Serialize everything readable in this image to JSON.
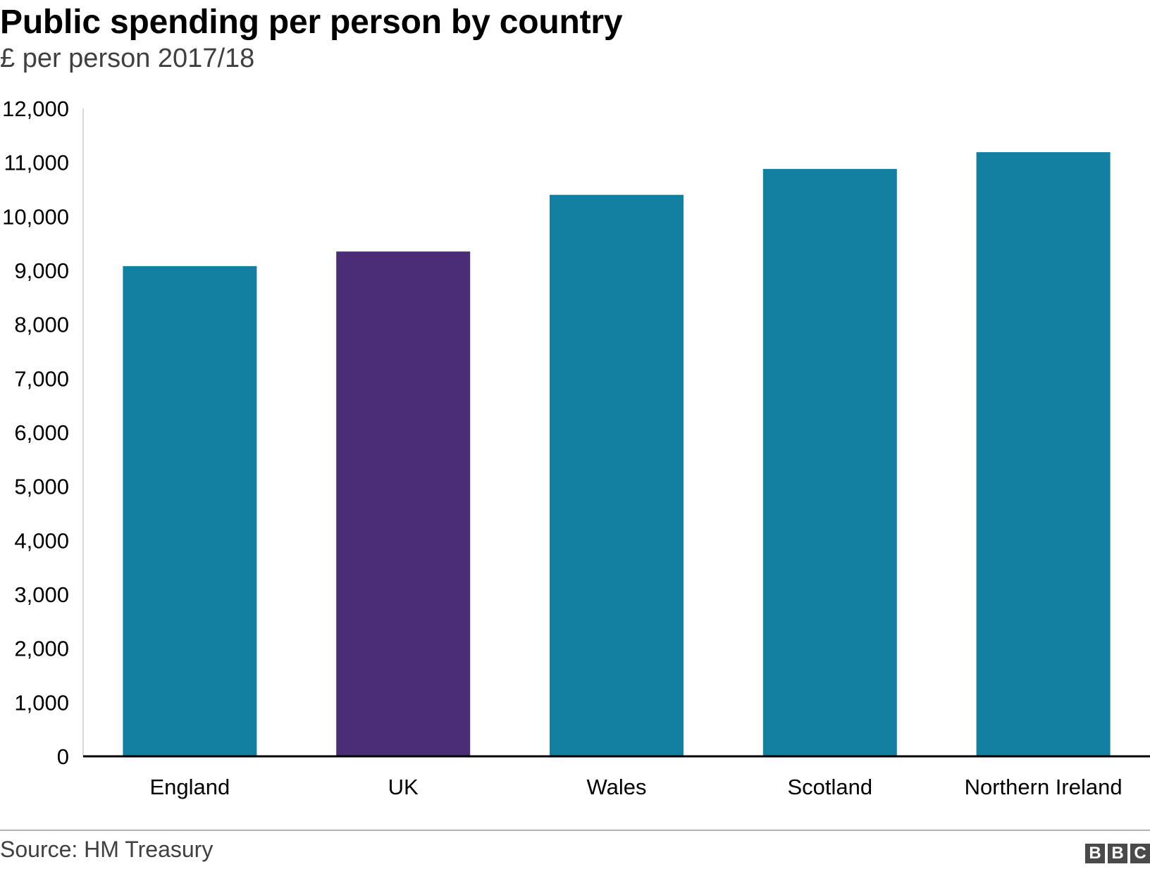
{
  "header": {
    "title": "Public spending per person by country",
    "subtitle": "£ per person 2017/18"
  },
  "footer": {
    "source": "Source: HM Treasury",
    "logo_letters": [
      "B",
      "B",
      "C"
    ]
  },
  "chart_data": {
    "type": "bar",
    "title": "Public spending per person by country",
    "subtitle": "£ per person 2017/18",
    "categories": [
      "England",
      "UK",
      "Wales",
      "Scotland",
      "Northern Ireland"
    ],
    "values": [
      9080,
      9350,
      10400,
      10880,
      11190
    ],
    "bar_colors": [
      "#1380a1",
      "#4b2c76",
      "#1380a1",
      "#1380a1",
      "#1380a1"
    ],
    "ylim": [
      0,
      12000
    ],
    "yticks": [
      0,
      1000,
      2000,
      3000,
      4000,
      5000,
      6000,
      7000,
      8000,
      9000,
      10000,
      11000,
      12000
    ],
    "ytick_labels": [
      "0",
      "1,000",
      "2,000",
      "3,000",
      "4,000",
      "5,000",
      "6,000",
      "7,000",
      "8,000",
      "9,000",
      "10,000",
      "11,000",
      "12,000"
    ],
    "xlabel": "",
    "ylabel": "",
    "grid": false,
    "legend": "none"
  }
}
